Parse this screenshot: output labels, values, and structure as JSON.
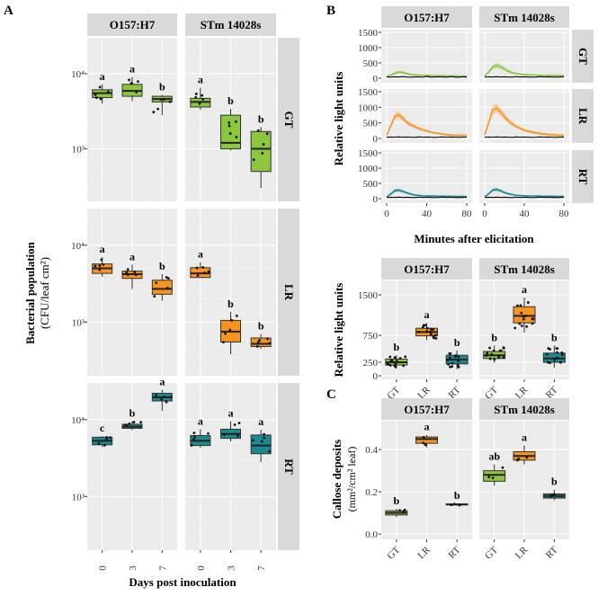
{
  "panel_labels": {
    "A": "A",
    "B": "B",
    "C": "C"
  },
  "colors": {
    "GT": "#8cc63f",
    "LR": "#f7941d",
    "RT": "#1b8a8f",
    "control": "#000000"
  },
  "chart_data": [
    {
      "id": "A",
      "type": "box",
      "ylabel": "Bacterial population",
      "ylabel_units": "(CFU/leaf cm²)",
      "xlabel": "Days post inoculation",
      "yscale": "log10",
      "ylim": [
        200,
        30000
      ],
      "y_ticks": [
        {
          "value": 1000,
          "label": "10³"
        },
        {
          "value": 10000,
          "label": "10⁴"
        }
      ],
      "columns": [
        "O157:H7",
        "STm 14028s"
      ],
      "rows": [
        "GT",
        "LR",
        "RT"
      ],
      "categories": [
        "0",
        "3",
        "7"
      ],
      "boxes": [
        {
          "strain": "O157:H7",
          "tissue": "GT",
          "day": "0",
          "stats": [
            4000,
            4800,
            5500,
            6100,
            7200
          ],
          "letter": "a"
        },
        {
          "strain": "O157:H7",
          "tissue": "GT",
          "day": "3",
          "stats": [
            4300,
            5000,
            5900,
            7200,
            9000
          ],
          "letter": "a"
        },
        {
          "strain": "O157:H7",
          "tissue": "GT",
          "day": "7",
          "stats": [
            2800,
            4200,
            4600,
            5000,
            5200
          ],
          "letter": "b"
        },
        {
          "strain": "STm 14028s",
          "tissue": "GT",
          "day": "0",
          "stats": [
            3300,
            3600,
            4200,
            4700,
            6500
          ],
          "letter": "a"
        },
        {
          "strain": "STm 14028s",
          "tissue": "GT",
          "day": "3",
          "stats": [
            950,
            1000,
            1200,
            2800,
            3400
          ],
          "letter": "b"
        },
        {
          "strain": "STm 14028s",
          "tissue": "GT",
          "day": "7",
          "stats": [
            300,
            500,
            1000,
            1700,
            1950
          ],
          "letter": "b"
        },
        {
          "strain": "O157:H7",
          "tissue": "LR",
          "day": "0",
          "stats": [
            3900,
            4300,
            5000,
            5700,
            7000
          ],
          "letter": "a"
        },
        {
          "strain": "O157:H7",
          "tissue": "LR",
          "day": "3",
          "stats": [
            2700,
            3700,
            4200,
            4600,
            5600
          ],
          "letter": "a"
        },
        {
          "strain": "O157:H7",
          "tissue": "LR",
          "day": "7",
          "stats": [
            1900,
            2300,
            2700,
            3500,
            4200
          ],
          "letter": "b"
        },
        {
          "strain": "STm 14028s",
          "tissue": "LR",
          "day": "0",
          "stats": [
            3800,
            3800,
            4300,
            5100,
            6000
          ],
          "letter": "a"
        },
        {
          "strain": "STm 14028s",
          "tissue": "LR",
          "day": "3",
          "stats": [
            380,
            550,
            750,
            1050,
            1350
          ],
          "letter": "b"
        },
        {
          "strain": "STm 14028s",
          "tissue": "LR",
          "day": "7",
          "stats": [
            450,
            480,
            520,
            620,
            700
          ],
          "letter": "b"
        },
        {
          "strain": "O157:H7",
          "tissue": "RT",
          "day": "0",
          "stats": [
            4400,
            4700,
            5300,
            5900,
            6100
          ],
          "letter": "c"
        },
        {
          "strain": "O157:H7",
          "tissue": "RT",
          "day": "3",
          "stats": [
            7300,
            7700,
            8100,
            8700,
            9500
          ],
          "letter": "b"
        },
        {
          "strain": "O157:H7",
          "tissue": "RT",
          "day": "7",
          "stats": [
            13000,
            17500,
            19500,
            22000,
            24500
          ],
          "letter": "a"
        },
        {
          "strain": "STm 14028s",
          "tissue": "RT",
          "day": "0",
          "stats": [
            4300,
            4600,
            5300,
            6200,
            7500
          ],
          "letter": "a"
        },
        {
          "strain": "STm 14028s",
          "tissue": "RT",
          "day": "3",
          "stats": [
            5200,
            5700,
            6500,
            7500,
            9500
          ],
          "letter": "a"
        },
        {
          "strain": "STm 14028s",
          "tissue": "RT",
          "day": "7",
          "stats": [
            2800,
            3600,
            4600,
            6300,
            7400
          ],
          "letter": "a"
        }
      ]
    },
    {
      "id": "B-top",
      "type": "line",
      "ylabel": "Relative light units",
      "xlabel": "Minutes after elicitation",
      "xlim": [
        0,
        80
      ],
      "ylim": [
        0,
        1500
      ],
      "x_ticks": [
        0,
        40,
        80
      ],
      "y_ticks": [
        0,
        500,
        1000,
        1500
      ],
      "columns": [
        "O157:H7",
        "STm 14028s"
      ],
      "rows": [
        "GT",
        "LR",
        "RT"
      ],
      "x": [
        0,
        4,
        8,
        12,
        16,
        20,
        24,
        28,
        32,
        36,
        40,
        44,
        48,
        52,
        56,
        60,
        64,
        68,
        72,
        76,
        80
      ],
      "series": [
        {
          "strain": "O157:H7",
          "tissue": "GT",
          "name": "treatment",
          "values": [
            60,
            100,
            160,
            200,
            190,
            150,
            120,
            110,
            100,
            95,
            90,
            85,
            80,
            80,
            78,
            75,
            72,
            72,
            70,
            70,
            70
          ],
          "band": 50
        },
        {
          "strain": "O157:H7",
          "tissue": "GT",
          "name": "control",
          "values": [
            40,
            40,
            45,
            40,
            50,
            40,
            35,
            40,
            45,
            30,
            60,
            35,
            40,
            45,
            40,
            35,
            50,
            40,
            30,
            45,
            40
          ]
        },
        {
          "strain": "STm 14028s",
          "tissue": "GT",
          "name": "treatment",
          "values": [
            80,
            200,
            360,
            420,
            380,
            300,
            230,
            180,
            150,
            130,
            120,
            110,
            105,
            100,
            95,
            95,
            90,
            90,
            85,
            85,
            85
          ],
          "band": 90
        },
        {
          "strain": "STm 14028s",
          "tissue": "GT",
          "name": "control",
          "values": [
            40,
            45,
            40,
            50,
            40,
            45,
            40,
            35,
            50,
            40,
            45,
            40,
            35,
            40,
            50,
            40,
            45,
            40,
            35,
            40,
            45
          ]
        },
        {
          "strain": "O157:H7",
          "tissue": "LR",
          "name": "treatment",
          "values": [
            100,
            400,
            700,
            760,
            650,
            520,
            440,
            380,
            320,
            280,
            240,
            200,
            180,
            160,
            140,
            120,
            110,
            100,
            100,
            95,
            95
          ],
          "band": 110
        },
        {
          "strain": "O157:H7",
          "tissue": "LR",
          "name": "control",
          "values": [
            40,
            45,
            40,
            50,
            40,
            45,
            40,
            35,
            50,
            40,
            45,
            40,
            35,
            40,
            50,
            40,
            45,
            40,
            35,
            40,
            45
          ]
        },
        {
          "strain": "STm 14028s",
          "tissue": "LR",
          "name": "treatment",
          "values": [
            120,
            500,
            900,
            980,
            850,
            700,
            560,
            460,
            380,
            320,
            270,
            230,
            200,
            180,
            160,
            140,
            125,
            115,
            105,
            100,
            100
          ],
          "band": 150
        },
        {
          "strain": "STm 14028s",
          "tissue": "LR",
          "name": "control",
          "values": [
            40,
            45,
            40,
            50,
            40,
            45,
            40,
            35,
            50,
            40,
            45,
            40,
            35,
            40,
            50,
            40,
            45,
            40,
            35,
            40,
            45
          ]
        },
        {
          "strain": "O157:H7",
          "tissue": "RT",
          "name": "treatment",
          "values": [
            60,
            150,
            260,
            280,
            240,
            190,
            150,
            120,
            105,
            95,
            90,
            85,
            85,
            80,
            80,
            78,
            75,
            75,
            72,
            72,
            72
          ],
          "band": 60
        },
        {
          "strain": "O157:H7",
          "tissue": "RT",
          "name": "control",
          "values": [
            40,
            45,
            40,
            50,
            40,
            45,
            40,
            35,
            50,
            40,
            45,
            40,
            35,
            40,
            50,
            40,
            45,
            40,
            35,
            40,
            45
          ]
        },
        {
          "strain": "STm 14028s",
          "tissue": "RT",
          "name": "treatment",
          "values": [
            60,
            160,
            280,
            300,
            260,
            200,
            160,
            130,
            110,
            100,
            95,
            90,
            88,
            85,
            82,
            80,
            78,
            78,
            75,
            75,
            75
          ],
          "band": 60
        },
        {
          "strain": "STm 14028s",
          "tissue": "RT",
          "name": "control",
          "values": [
            40,
            45,
            40,
            50,
            40,
            45,
            40,
            35,
            50,
            40,
            45,
            40,
            35,
            40,
            50,
            40,
            45,
            40,
            35,
            40,
            45
          ]
        }
      ]
    },
    {
      "id": "B-bottom",
      "type": "box",
      "ylabel": "Relative light units",
      "ylim": [
        0,
        1700
      ],
      "y_ticks": [
        0,
        250,
        750,
        1500
      ],
      "columns": [
        "O157:H7",
        "STm 14028s"
      ],
      "categories": [
        "GT",
        "LR",
        "RT"
      ],
      "boxes": [
        {
          "strain": "O157:H7",
          "tissue": "GT",
          "stats": [
            130,
            200,
            250,
            310,
            380
          ],
          "letter": "b"
        },
        {
          "strain": "O157:H7",
          "tissue": "LR",
          "stats": [
            660,
            740,
            810,
            880,
            980
          ],
          "letter": "a"
        },
        {
          "strain": "O157:H7",
          "tissue": "RT",
          "stats": [
            120,
            220,
            300,
            380,
            470
          ],
          "letter": "b"
        },
        {
          "strain": "STm 14028s",
          "tissue": "GT",
          "stats": [
            240,
            320,
            380,
            450,
            560
          ],
          "letter": "b"
        },
        {
          "strain": "STm 14028s",
          "tissue": "LR",
          "stats": [
            800,
            980,
            1110,
            1280,
            1450
          ],
          "letter": "a"
        },
        {
          "strain": "STm 14028s",
          "tissue": "RT",
          "stats": [
            150,
            250,
            320,
            420,
            560
          ],
          "letter": "b"
        }
      ]
    },
    {
      "id": "C",
      "type": "box",
      "ylabel": "Callose deposits",
      "ylabel_units": "(mm²/cm² leaf)",
      "ylim": [
        0,
        0.52
      ],
      "y_ticks": [
        "0.0",
        "0.2",
        "0.4"
      ],
      "columns": [
        "O157:H7",
        "STm 14028s"
      ],
      "categories": [
        "GT",
        "LR",
        "RT"
      ],
      "boxes": [
        {
          "strain": "O157:H7",
          "tissue": "GT",
          "stats": [
            0.08,
            0.09,
            0.1,
            0.11,
            0.12
          ],
          "letter": "b"
        },
        {
          "strain": "O157:H7",
          "tissue": "LR",
          "stats": [
            0.41,
            0.43,
            0.45,
            0.46,
            0.47
          ],
          "letter": "a"
        },
        {
          "strain": "O157:H7",
          "tissue": "RT",
          "stats": [
            0.135,
            0.138,
            0.14,
            0.142,
            0.145
          ],
          "letter": "b"
        },
        {
          "strain": "STm 14028s",
          "tissue": "GT",
          "stats": [
            0.23,
            0.25,
            0.28,
            0.3,
            0.33
          ],
          "letter": "ab"
        },
        {
          "strain": "STm 14028s",
          "tissue": "LR",
          "stats": [
            0.33,
            0.35,
            0.37,
            0.39,
            0.42
          ],
          "letter": "a"
        },
        {
          "strain": "STm 14028s",
          "tissue": "RT",
          "stats": [
            0.16,
            0.17,
            0.18,
            0.19,
            0.21
          ],
          "letter": "b"
        }
      ]
    }
  ]
}
